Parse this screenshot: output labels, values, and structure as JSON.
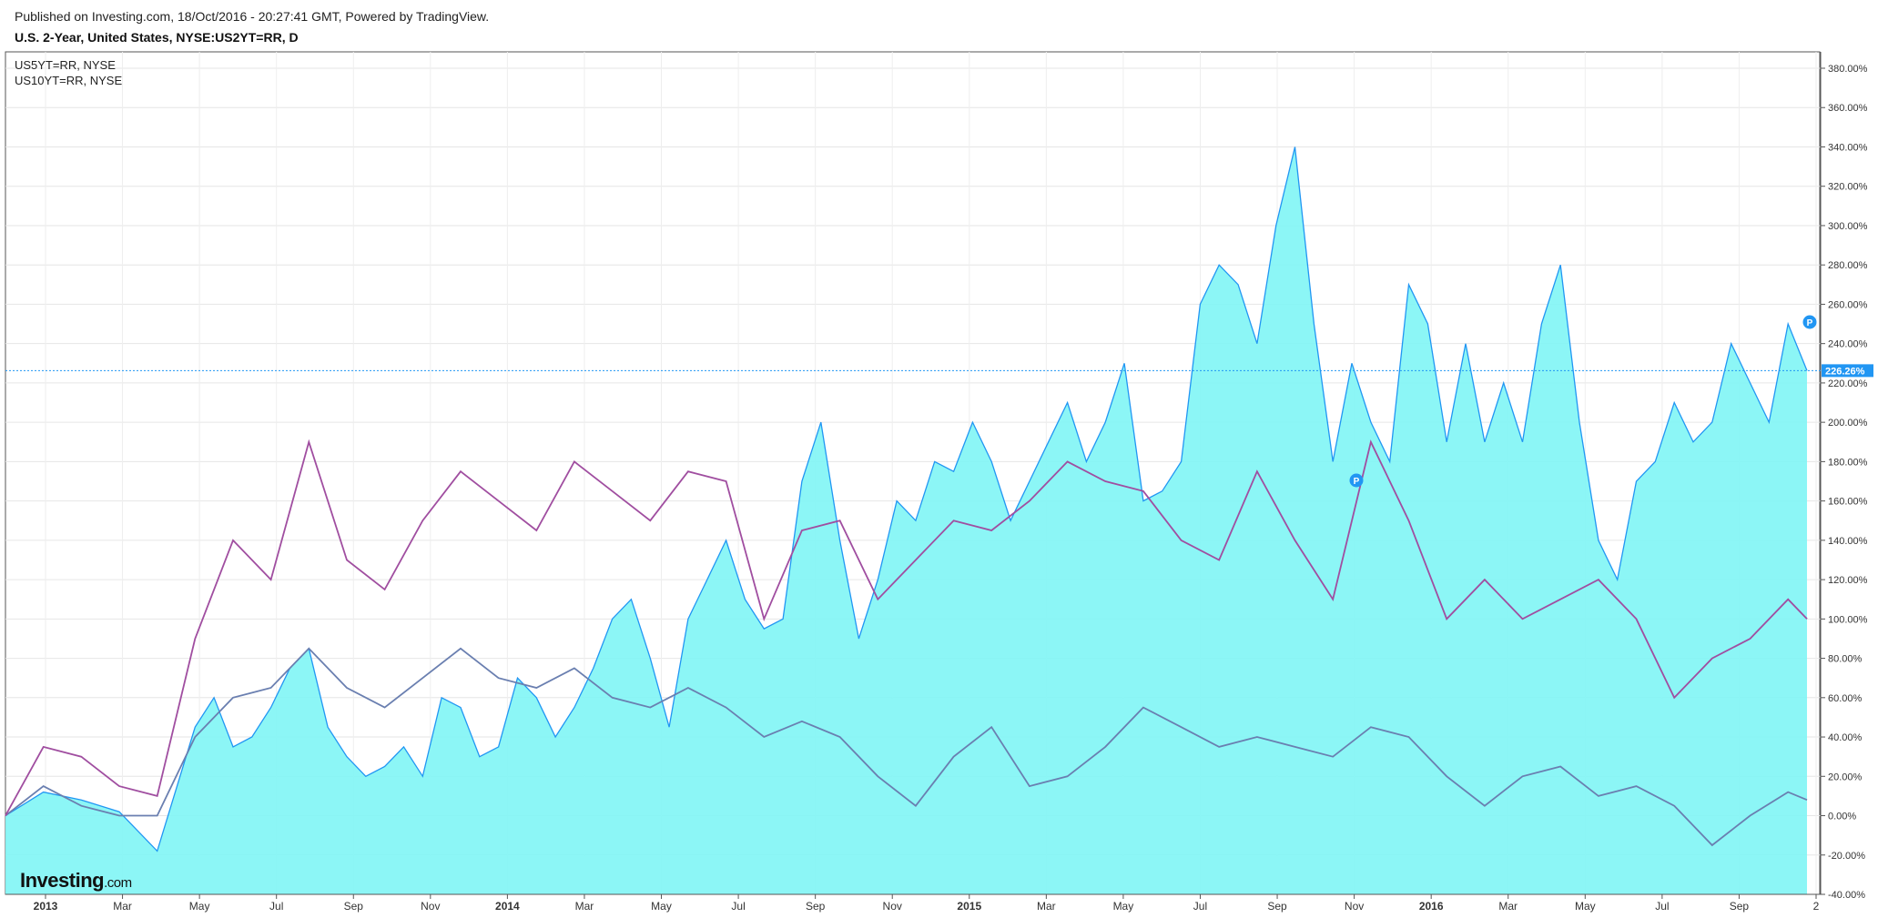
{
  "header": {
    "published": "Published on Investing.com, 18/Oct/2016 - 20:27:41 GMT, Powered by TradingView.",
    "title": "U.S. 2-Year, United States, NYSE:US2YT=RR, D"
  },
  "legend": [
    "US5YT=RR, NYSE",
    "US10YT=RR, NYSE"
  ],
  "logo": {
    "main": "Investing",
    "suffix": ".com"
  },
  "last_value_label": "226.26%",
  "marker_label": "P",
  "colors": {
    "area_line": "#2196f3",
    "area_fill": "#7ff5f5",
    "us5": "#6a7fb0",
    "us10": "#a04ea0",
    "current": "#2196f3"
  },
  "chart_data": {
    "type": "area",
    "yaxis": {
      "min": -40,
      "max": 380,
      "ticks": [
        "380.00%",
        "360.00%",
        "340.00%",
        "320.00%",
        "300.00%",
        "280.00%",
        "260.00%",
        "240.00%",
        "220.00%",
        "200.00%",
        "180.00%",
        "160.00%",
        "140.00%",
        "120.00%",
        "100.00%",
        "80.00%",
        "60.00%",
        "40.00%",
        "20.00%",
        "0.00%",
        "-20.00%",
        "-40.00%"
      ]
    },
    "xaxis": {
      "ticks": [
        "2013",
        "Mar",
        "May",
        "Jul",
        "Sep",
        "Nov",
        "2014",
        "Mar",
        "May",
        "Jul",
        "Sep",
        "Nov",
        "2015",
        "Mar",
        "May",
        "Jul",
        "Sep",
        "Nov",
        "2016",
        "Mar",
        "May",
        "Jul",
        "Sep",
        "2"
      ],
      "bold": [
        "2013",
        "2014",
        "2015",
        "2016"
      ]
    },
    "current_value": 226.26,
    "series": [
      {
        "name": "NYSE:US2YT=RR",
        "style": "area",
        "x": [
          0,
          2,
          4,
          6,
          8,
          10,
          11,
          12,
          13,
          14,
          15,
          16,
          17,
          18,
          19,
          20,
          21,
          22,
          23,
          24,
          25,
          26,
          27,
          28,
          29,
          30,
          31,
          32,
          33,
          34,
          35,
          36,
          37,
          38,
          39,
          40,
          41,
          42,
          43,
          44,
          45,
          46,
          47,
          48,
          49,
          50,
          51,
          52,
          53,
          54,
          55,
          56,
          57,
          58,
          59,
          60,
          61,
          62,
          63,
          64,
          65,
          66,
          67,
          68,
          69,
          70,
          71,
          72,
          73,
          74,
          75,
          76,
          77,
          78,
          79,
          80,
          81,
          82,
          83,
          84,
          85,
          86,
          87,
          88,
          89,
          90,
          91,
          92,
          93,
          94,
          95
        ],
        "y": [
          0,
          12,
          8,
          2,
          -18,
          45,
          60,
          35,
          40,
          55,
          75,
          85,
          45,
          30,
          20,
          25,
          35,
          20,
          60,
          55,
          30,
          35,
          70,
          60,
          40,
          55,
          75,
          100,
          110,
          80,
          45,
          100,
          120,
          140,
          110,
          95,
          100,
          170,
          200,
          140,
          90,
          120,
          160,
          150,
          180,
          175,
          200,
          180,
          150,
          170,
          190,
          210,
          180,
          200,
          230,
          160,
          165,
          180,
          260,
          280,
          270,
          240,
          300,
          340,
          250,
          180,
          230,
          200,
          180,
          270,
          250,
          190,
          240,
          190,
          220,
          190,
          250,
          280,
          200,
          140,
          120,
          170,
          180,
          210,
          190,
          200,
          240,
          220,
          200,
          250,
          226.26
        ]
      },
      {
        "name": "US5YT=RR, NYSE",
        "style": "line",
        "x": [
          0,
          2,
          4,
          6,
          8,
          10,
          12,
          14,
          16,
          18,
          20,
          22,
          24,
          26,
          28,
          30,
          32,
          34,
          36,
          38,
          40,
          42,
          44,
          46,
          48,
          50,
          52,
          54,
          56,
          58,
          60,
          62,
          64,
          66,
          68,
          70,
          72,
          74,
          76,
          78,
          80,
          82,
          84,
          86,
          88,
          90,
          92,
          94,
          95
        ],
        "y": [
          0,
          15,
          5,
          0,
          0,
          40,
          60,
          65,
          85,
          65,
          55,
          70,
          85,
          70,
          65,
          75,
          60,
          55,
          65,
          55,
          40,
          48,
          40,
          20,
          5,
          30,
          45,
          15,
          20,
          35,
          55,
          45,
          35,
          40,
          35,
          30,
          45,
          40,
          20,
          5,
          20,
          25,
          10,
          15,
          5,
          -15,
          0,
          12,
          8
        ]
      },
      {
        "name": "US10YT=RR, NYSE",
        "style": "line",
        "x": [
          0,
          2,
          4,
          6,
          8,
          10,
          12,
          14,
          16,
          18,
          20,
          22,
          24,
          26,
          28,
          30,
          32,
          34,
          36,
          38,
          40,
          42,
          44,
          46,
          48,
          50,
          52,
          54,
          56,
          58,
          60,
          62,
          64,
          66,
          68,
          70,
          72,
          74,
          76,
          78,
          80,
          82,
          84,
          86,
          88,
          90,
          92,
          94,
          95
        ],
        "y": [
          0,
          35,
          30,
          15,
          10,
          90,
          140,
          120,
          190,
          130,
          115,
          150,
          175,
          160,
          145,
          180,
          165,
          150,
          175,
          170,
          100,
          145,
          150,
          110,
          130,
          150,
          145,
          160,
          180,
          170,
          165,
          140,
          130,
          175,
          140,
          110,
          190,
          150,
          100,
          120,
          100,
          110,
          120,
          100,
          60,
          80,
          90,
          110,
          100
        ]
      }
    ]
  }
}
